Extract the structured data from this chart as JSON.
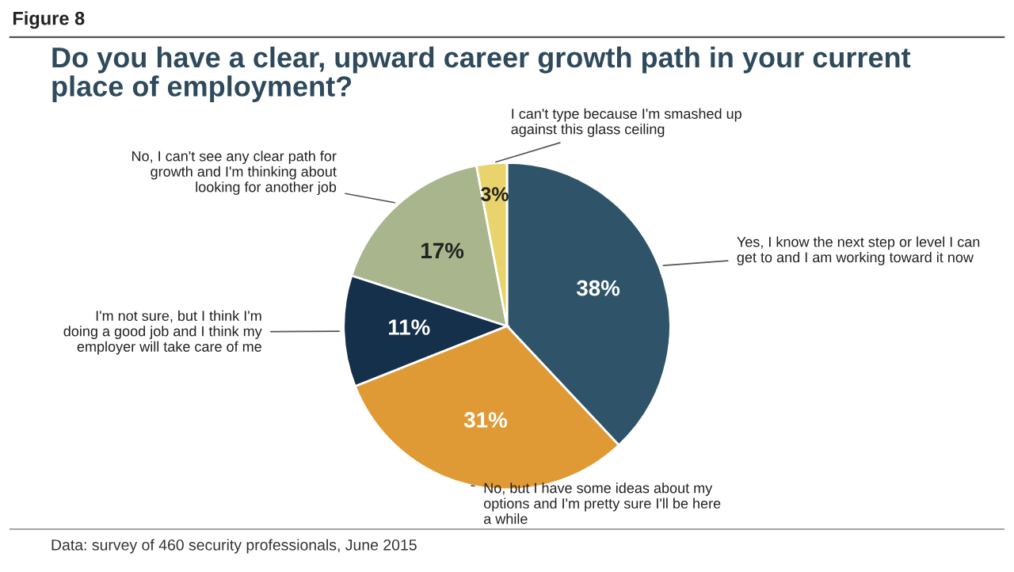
{
  "chart_data": {
    "type": "pie",
    "title": "Do you have a clear, upward career growth path in your current place of employment?",
    "categories": [
      "Yes, I know the next step or level I can get to and I am working toward it now",
      "No, but I have some ideas about my options and I'm pretty sure I'll be here a while",
      "I'm not sure, but I think I'm doing a good job and I think my employer will take care of me",
      "No, I can't see any clear path for growth and I'm thinking about looking for another job",
      "I can't type because I'm smashed up against this glass ceiling"
    ],
    "values": [
      38,
      31,
      11,
      17,
      3
    ],
    "value_labels": [
      "38%",
      "31%",
      "11%",
      "17%",
      "3%"
    ],
    "colors": [
      "#2f5469",
      "#e09a35",
      "#15304a",
      "#a9b58c",
      "#e8d36c"
    ],
    "annotations": [
      "Figure 8",
      "Data: survey of 460 security professionals, June 2015"
    ]
  }
}
